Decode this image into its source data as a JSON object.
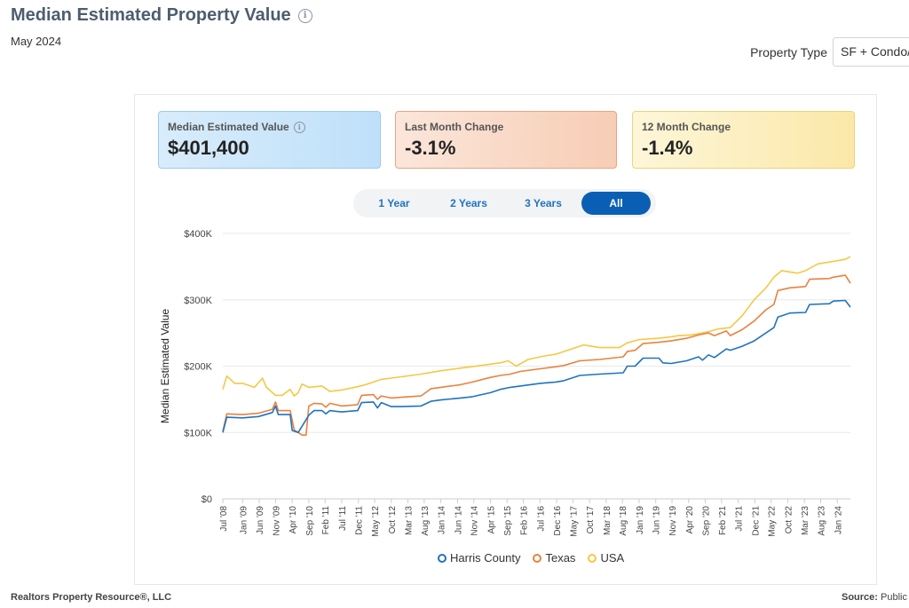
{
  "header": {
    "title": "Median Estimated Property Value",
    "date": "May 2024",
    "property_type_label": "Property Type",
    "property_type_value": "SF + Condo/Townhouse"
  },
  "cards": [
    {
      "label": "Median Estimated Value",
      "value": "$401,400"
    },
    {
      "label": "Last Month Change",
      "value": "-3.1%"
    },
    {
      "label": "12 Month Change",
      "value": "-1.4%"
    }
  ],
  "range_buttons": [
    "1 Year",
    "2 Years",
    "3 Years",
    "All"
  ],
  "range_selected": "All",
  "footer": {
    "left": "Realtors Property Resource®, LLC",
    "source_label": "Source:",
    "source_value": "Public"
  },
  "chart_data": {
    "type": "line",
    "title": "Median Estimated Property Value",
    "xlabel": "",
    "ylabel": "Median Estimated Value",
    "ylim": [
      0,
      400000
    ],
    "yticks": [
      0,
      100000,
      200000,
      300000,
      400000
    ],
    "ytick_labels": [
      "$0",
      "$100K",
      "$200K",
      "$300K",
      "$400K"
    ],
    "xticks": [
      2008.5,
      2009.0,
      2009.42,
      2009.83,
      2010.25,
      2010.67,
      2011.08,
      2011.5,
      2011.92,
      2012.33,
      2012.75,
      2013.17,
      2013.58,
      2014.0,
      2014.42,
      2014.83,
      2015.25,
      2015.67,
      2016.08,
      2016.5,
      2016.92,
      2017.33,
      2017.75,
      2018.17,
      2018.58,
      2019.0,
      2019.42,
      2019.83,
      2020.25,
      2020.67,
      2021.08,
      2021.5,
      2021.92,
      2022.33,
      2022.75,
      2023.17,
      2023.58,
      2024.0
    ],
    "xtick_labels": [
      "Jul '08",
      "Jan '09",
      "Jun '09",
      "Nov '09",
      "Apr '10",
      "Sep '10",
      "Feb '11",
      "Jul '11",
      "Dec '11",
      "May '12",
      "Oct '12",
      "Mar '13",
      "Aug '13",
      "Jan '14",
      "Jun '14",
      "Nov '14",
      "Apr '15",
      "Sep '15",
      "Feb '16",
      "Jul '16",
      "Dec '16",
      "May '17",
      "Oct '17",
      "Mar '18",
      "Aug '18",
      "Jan '19",
      "Jun '19",
      "Nov '19",
      "Apr '20",
      "Sep '20",
      "Feb '21",
      "Jul '21",
      "Dec '21",
      "May '22",
      "Oct '22",
      "Mar '23",
      "Aug '23",
      "Jan '24"
    ],
    "xlim": [
      2008.5,
      2024.33
    ],
    "legend": "bottom",
    "grid": true,
    "series": [
      {
        "name": "Harris County",
        "color": "#1f73c0",
        "x": [
          2008.5,
          2008.6,
          2009.0,
          2009.4,
          2009.75,
          2009.83,
          2009.9,
          2010.2,
          2010.25,
          2010.4,
          2010.67,
          2010.8,
          2011.0,
          2011.1,
          2011.2,
          2011.5,
          2011.9,
          2012.0,
          2012.3,
          2012.4,
          2012.5,
          2012.75,
          2013.0,
          2013.5,
          2013.75,
          2014.0,
          2014.5,
          2014.8,
          2015.25,
          2015.5,
          2015.75,
          2016.0,
          2016.5,
          2016.9,
          2017.1,
          2017.5,
          2018.0,
          2018.6,
          2018.7,
          2018.9,
          2019.1,
          2019.5,
          2019.6,
          2019.8,
          2020.0,
          2020.2,
          2020.5,
          2020.6,
          2020.75,
          2020.9,
          2021.2,
          2021.3,
          2021.6,
          2021.9,
          2022.2,
          2022.4,
          2022.5,
          2022.8,
          2023.2,
          2023.3,
          2023.8,
          2023.9,
          2024.2,
          2024.33
        ],
        "y": [
          100000,
          123000,
          122000,
          124000,
          130000,
          140000,
          127000,
          127000,
          103000,
          100000,
          126000,
          133000,
          133000,
          128000,
          133000,
          131000,
          133000,
          145000,
          146000,
          137000,
          145000,
          139000,
          139000,
          140000,
          147000,
          149000,
          152000,
          154000,
          160000,
          165000,
          168000,
          170000,
          174000,
          176000,
          178000,
          186000,
          188000,
          190000,
          200000,
          200000,
          212000,
          212000,
          205000,
          204000,
          206000,
          208000,
          214000,
          209000,
          217000,
          213000,
          226000,
          224000,
          230000,
          238000,
          250000,
          258000,
          274000,
          280000,
          281000,
          293000,
          294000,
          298000,
          299000,
          289000
        ]
      },
      {
        "name": "Texas",
        "color": "#e8823e",
        "x": [
          2008.5,
          2008.6,
          2009.0,
          2009.4,
          2009.75,
          2009.83,
          2009.9,
          2010.2,
          2010.3,
          2010.5,
          2010.6,
          2010.67,
          2010.8,
          2011.0,
          2011.1,
          2011.2,
          2011.5,
          2011.9,
          2012.0,
          2012.3,
          2012.4,
          2012.5,
          2012.75,
          2013.0,
          2013.5,
          2013.75,
          2014.0,
          2014.5,
          2014.8,
          2015.25,
          2015.5,
          2015.75,
          2016.0,
          2016.5,
          2016.9,
          2017.1,
          2017.5,
          2018.0,
          2018.6,
          2018.7,
          2018.9,
          2019.1,
          2019.5,
          2019.8,
          2020.2,
          2020.5,
          2020.75,
          2020.9,
          2021.2,
          2021.3,
          2021.6,
          2021.9,
          2022.2,
          2022.4,
          2022.5,
          2022.8,
          2023.2,
          2023.3,
          2023.8,
          2023.9,
          2024.2,
          2024.33
        ],
        "y": [
          102000,
          128000,
          127000,
          129000,
          135000,
          146000,
          133000,
          133000,
          104000,
          96000,
          96000,
          140000,
          144000,
          143000,
          138000,
          144000,
          140000,
          142000,
          156000,
          157000,
          150000,
          155000,
          152000,
          153000,
          155000,
          166000,
          168000,
          172000,
          176000,
          183000,
          186000,
          188000,
          192000,
          196000,
          199000,
          201000,
          208000,
          210000,
          214000,
          222000,
          224000,
          234000,
          236000,
          238000,
          242000,
          247000,
          250000,
          246000,
          253000,
          246000,
          255000,
          268000,
          285000,
          293000,
          314000,
          318000,
          320000,
          331000,
          332000,
          334000,
          337000,
          325000
        ]
      },
      {
        "name": "USA",
        "color": "#f5c842",
        "x": [
          2008.5,
          2008.6,
          2008.8,
          2009.0,
          2009.3,
          2009.5,
          2009.6,
          2009.83,
          2010.0,
          2010.2,
          2010.3,
          2010.4,
          2010.5,
          2010.67,
          2011.0,
          2011.2,
          2011.5,
          2011.9,
          2012.1,
          2012.3,
          2012.5,
          2012.75,
          2013.0,
          2013.5,
          2014.0,
          2014.5,
          2015.0,
          2015.5,
          2015.7,
          2015.9,
          2016.2,
          2016.5,
          2016.9,
          2017.2,
          2017.5,
          2017.6,
          2018.0,
          2018.5,
          2018.7,
          2019.0,
          2019.5,
          2019.8,
          2020.0,
          2020.3,
          2020.5,
          2020.75,
          2021.0,
          2021.3,
          2021.6,
          2021.9,
          2022.2,
          2022.4,
          2022.6,
          2022.8,
          2023.0,
          2023.2,
          2023.5,
          2023.7,
          2023.9,
          2024.2,
          2024.33
        ],
        "y": [
          165000,
          185000,
          174000,
          174000,
          168000,
          182000,
          168000,
          156000,
          156000,
          165000,
          155000,
          160000,
          173000,
          168000,
          170000,
          162000,
          164000,
          169000,
          172000,
          176000,
          180000,
          182000,
          184000,
          188000,
          193000,
          197000,
          201000,
          205000,
          208000,
          200000,
          210000,
          214000,
          218000,
          224000,
          230000,
          232000,
          228000,
          228000,
          235000,
          240000,
          242000,
          244000,
          246000,
          247000,
          249000,
          252000,
          256000,
          258000,
          276000,
          300000,
          318000,
          334000,
          344000,
          342000,
          340000,
          344000,
          354000,
          356000,
          358000,
          361000,
          365000
        ]
      }
    ]
  }
}
